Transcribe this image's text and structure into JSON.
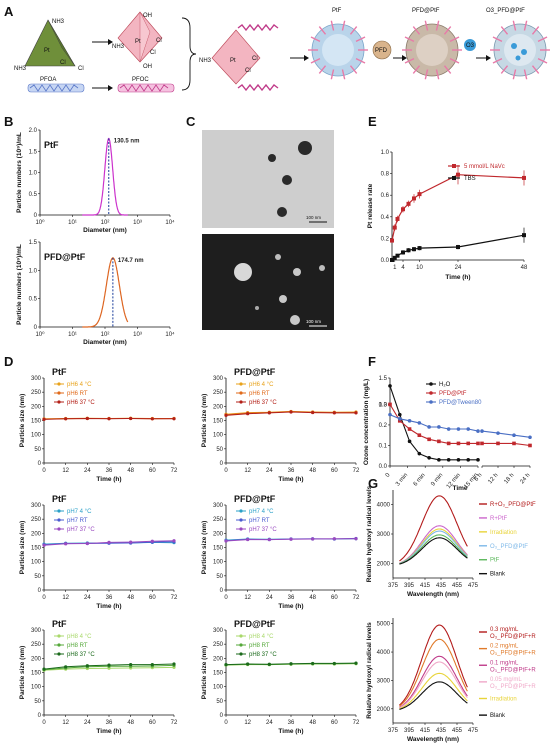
{
  "panel_labels": {
    "a": "A",
    "b": "B",
    "c": "C",
    "d": "D",
    "e": "E",
    "f": "F",
    "g": "G"
  },
  "scheme": {
    "nh3_top": "NH3",
    "nh3_left": "NH3",
    "pt": "Pt",
    "cl_a": "Cl",
    "cl_b": "Cl",
    "oh_top": "OH",
    "oh_bottom": "OH",
    "nh3_mid": "NH3",
    "cl_c": "Cl",
    "cl_d": "Cl",
    "pt2": "Pt",
    "pfoa": "PFOA",
    "pfoc": "PFOC",
    "nh_right": "NH3",
    "pt3": "Pt",
    "cl_e": "Cl",
    "cl_f": "Cl",
    "ptf": "PtF",
    "pfd_ptf": "PFD@PtF",
    "o3_pfd": "O3_PFD@PtF",
    "pfd": "PFD",
    "o3": "O3"
  },
  "tem": {
    "scale1": "100 nm",
    "scale2": "100 nm"
  },
  "colors": {
    "ptf": "#cc33cc",
    "pfd_ptf": "#dd6622",
    "e_navc": "#c0282d",
    "e_tbs": "#111111",
    "f_h2o": "#111111",
    "f_pfd": "#c0282d",
    "f_tween": "#4a6fc4",
    "d_ph6": [
      "#e8a21a",
      "#e06a1a",
      "#b32018"
    ],
    "d_ph7": [
      "#2aa0c8",
      "#4a5bd0",
      "#9a4ac0"
    ],
    "d_ph8": [
      "#a8d86a",
      "#55a83a",
      "#1b6a1b"
    ],
    "g1": [
      "#b31b1b",
      "#cc66cc",
      "#e8d43a",
      "#7eb8e8",
      "#5cb85c",
      "#111111"
    ],
    "g2": [
      "#b31b1b",
      "#e07a2a",
      "#c03c8a",
      "#f0a8c8",
      "#e8d43a",
      "#111111"
    ]
  },
  "chart_data": [
    {
      "id": "B1",
      "type": "line",
      "label": "PtF",
      "annotation": "130.5 nm",
      "x_scale": "log",
      "xlim": [
        1,
        10000
      ],
      "xticks": [
        "10⁰",
        "10¹",
        "10²",
        "10³",
        "10⁴"
      ],
      "xlabel": "Diameter (nm)",
      "ylabel": "Particle numbers (10⁹)/mL",
      "ylim": [
        0,
        2.0
      ],
      "yticks": [
        "0",
        "0.5",
        "1.0",
        "1.5",
        "2.0"
      ],
      "peak_x": 130.5,
      "peak_y": 1.8,
      "log_width": 0.12
    },
    {
      "id": "B2",
      "type": "line",
      "label": "PFD@PtF",
      "annotation": "174.7 nm",
      "x_scale": "log",
      "xlim": [
        1,
        10000
      ],
      "xticks": [
        "10⁰",
        "10¹",
        "10²",
        "10³",
        "10⁴"
      ],
      "xlabel": "Diameter (nm)",
      "ylabel": "Particle numbers (10⁹)/mL",
      "ylim": [
        0,
        1.5
      ],
      "yticks": [
        "0",
        "0.5",
        "1.0",
        "1.5"
      ],
      "peak_x": 174.7,
      "peak_y": 1.22,
      "log_width": 0.2
    },
    {
      "id": "E",
      "type": "line",
      "xlabel": "Time (h)",
      "ylabel": "Pt release rate",
      "xlim": [
        0,
        48
      ],
      "xticks": [
        1,
        4,
        10,
        24,
        48
      ],
      "ylim": [
        0,
        1.0
      ],
      "yticks": [
        "0.0",
        "0.2",
        "0.4",
        "0.6",
        "0.8",
        "1.0"
      ],
      "series": [
        {
          "name": "5 mmol/L NaVc",
          "x": [
            0,
            1,
            2,
            4,
            6,
            8,
            10,
            24,
            48
          ],
          "y": [
            0.18,
            0.3,
            0.38,
            0.47,
            0.52,
            0.57,
            0.61,
            0.79,
            0.76
          ],
          "err": [
            0.02,
            0.03,
            0.03,
            0.03,
            0.03,
            0.04,
            0.04,
            0.09,
            0.07
          ]
        },
        {
          "name": "TBS",
          "x": [
            0,
            1,
            2,
            4,
            6,
            8,
            10,
            24,
            48
          ],
          "y": [
            0.0,
            0.02,
            0.04,
            0.07,
            0.09,
            0.1,
            0.11,
            0.12,
            0.23
          ],
          "err": [
            0.01,
            0.01,
            0.01,
            0.02,
            0.02,
            0.02,
            0.02,
            0.02,
            0.07
          ]
        }
      ]
    },
    {
      "id": "D",
      "type": "line",
      "xlabel": "Time (h)",
      "ylabel": "Particle size (nm)",
      "xticks": [
        0,
        12,
        24,
        36,
        48,
        60,
        72
      ],
      "ylim": [
        0,
        300
      ],
      "yticks": [
        0,
        50,
        100,
        150,
        200,
        250,
        300
      ],
      "subplots": [
        {
          "title": "PtF",
          "legend": [
            "pH6 4 °C",
            "pH6 RT",
            "pH6 37 °C"
          ],
          "values": [
            [
              156,
              157,
              158,
              157,
              158,
              157,
              157
            ],
            [
              155,
              156,
              157,
              157,
              157,
              156,
              157
            ],
            [
              154,
              156,
              157,
              156,
              157,
              156,
              156
            ]
          ],
          "colors": "d_ph6"
        },
        {
          "title": "PFD@PtF",
          "legend": [
            "pH6 4 °C",
            "pH6 RT",
            "pH6 37 °C"
          ],
          "values": [
            [
              172,
              178,
              179,
              182,
              180,
              179,
              180
            ],
            [
              170,
              176,
              178,
              181,
              179,
              178,
              178
            ],
            [
              168,
              174,
              177,
              180,
              178,
              177,
              177
            ]
          ],
          "colors": "d_ph6"
        },
        {
          "title": "PtF",
          "legend": [
            "pH7 4 °C",
            "pH7 RT",
            "pH7 37 °C"
          ],
          "values": [
            [
              162,
              165,
              166,
              166,
              166,
              168,
              167
            ],
            [
              160,
              164,
              164,
              165,
              166,
              169,
              170
            ],
            [
              158,
              163,
              164,
              168,
              169,
              172,
              174
            ]
          ],
          "colors": "d_ph7"
        },
        {
          "title": "PFD@PtF",
          "legend": [
            "pH7 4 °C",
            "pH7 RT",
            "pH7 37 °C"
          ],
          "values": [
            [
              176,
              180,
              179,
              180,
              180,
              180,
              181
            ],
            [
              174,
              179,
              178,
              180,
              181,
              180,
              182
            ],
            [
              173,
              178,
              178,
              179,
              180,
              181,
              181
            ]
          ],
          "colors": "d_ph7"
        },
        {
          "title": "PtF",
          "legend": [
            "pH8 4 °C",
            "pH8 RT",
            "pH8 37 °C"
          ],
          "values": [
            [
              158,
              162,
              164,
              165,
              166,
              167,
              168
            ],
            [
              160,
              166,
              170,
              172,
              172,
              173,
              175
            ],
            [
              162,
              170,
              174,
              176,
              178,
              178,
              180
            ]
          ],
          "colors": "d_ph8"
        },
        {
          "title": "PFD@PtF",
          "legend": [
            "pH8 4 °C",
            "pH8 RT",
            "pH8 37 °C"
          ],
          "values": [
            [
              176,
              178,
              178,
              179,
              180,
              180,
              181
            ],
            [
              177,
              179,
              178,
              180,
              181,
              181,
              182
            ],
            [
              178,
              180,
              179,
              181,
              182,
              182,
              183
            ]
          ],
          "colors": "d_ph8"
        }
      ]
    },
    {
      "id": "F",
      "type": "line",
      "xlabel": "Time",
      "ylabel": "Ozone concentration (mg/L)",
      "ylim": [
        0,
        1.5
      ],
      "yticks": [
        "0.0",
        "0.1",
        "0.2",
        "0.3",
        "1.0",
        "1.5"
      ],
      "xticks_left": [
        "0",
        "3 min",
        "6 min",
        "9 min",
        "12 min",
        "15 min"
      ],
      "xticks_right": [
        "6 h",
        "12 h",
        "18 h",
        "24 h"
      ],
      "series": [
        {
          "name": "H₂O",
          "left": [
            1.35,
            0.25,
            0.12,
            0.06,
            0.04,
            0.03,
            0.03,
            0.03,
            0.03,
            0.03
          ],
          "right": []
        },
        {
          "name": "PFD@PtF",
          "left": [
            0.3,
            0.22,
            0.18,
            0.15,
            0.13,
            0.12,
            0.11,
            0.11,
            0.11,
            0.11
          ],
          "right": [
            0.11,
            0.11,
            0.11,
            0.1
          ]
        },
        {
          "name": "PFD@Tween80",
          "left": [
            0.25,
            0.23,
            0.22,
            0.21,
            0.19,
            0.19,
            0.18,
            0.18,
            0.18,
            0.17
          ],
          "right": [
            0.17,
            0.16,
            0.15,
            0.14
          ]
        }
      ]
    },
    {
      "id": "G1",
      "type": "line",
      "xlabel": "Wavelength (nm)",
      "ylabel": "Relative hydroxyl radical levels",
      "xlim": [
        375,
        475
      ],
      "xticks": [
        375,
        395,
        415,
        435,
        455,
        475
      ],
      "ylim": [
        1500,
        4500
      ],
      "yticks": [
        2000,
        3000,
        4000
      ],
      "series": [
        {
          "name": "R+O₃_PFD@PtF",
          "peak": 4300
        },
        {
          "name": "R+PtF",
          "peak": 3280
        },
        {
          "name": "Irradiation",
          "peak": 3170
        },
        {
          "name": "O₃_PFD@PtF",
          "peak": 3100
        },
        {
          "name": "PtF",
          "peak": 2970
        },
        {
          "name": "Blank",
          "peak": 2870
        }
      ]
    },
    {
      "id": "G2",
      "type": "line",
      "xlabel": "Wavelength (nm)",
      "ylabel": "Relative hydroxyl radical levels",
      "xlim": [
        375,
        475
      ],
      "xticks": [
        375,
        395,
        415,
        435,
        455,
        475
      ],
      "ylim": [
        1500,
        5200
      ],
      "yticks": [
        2000,
        3000,
        4000,
        5000
      ],
      "series": [
        {
          "name": "0.3 mg/mL O₃_PFD@PtF+R",
          "peak": 4950
        },
        {
          "name": "0.2 mg/mL O₃_PFD@PtF+R",
          "peak": 4450
        },
        {
          "name": "0.1 mg/mL O₃_PFD@PtF+R",
          "peak": 3850
        },
        {
          "name": "0.05 mg/mL O₃_PFD@PtF+R",
          "peak": 3650
        },
        {
          "name": "Irradiation",
          "peak": 3250
        },
        {
          "name": "Blank",
          "peak": 2950
        }
      ]
    }
  ]
}
